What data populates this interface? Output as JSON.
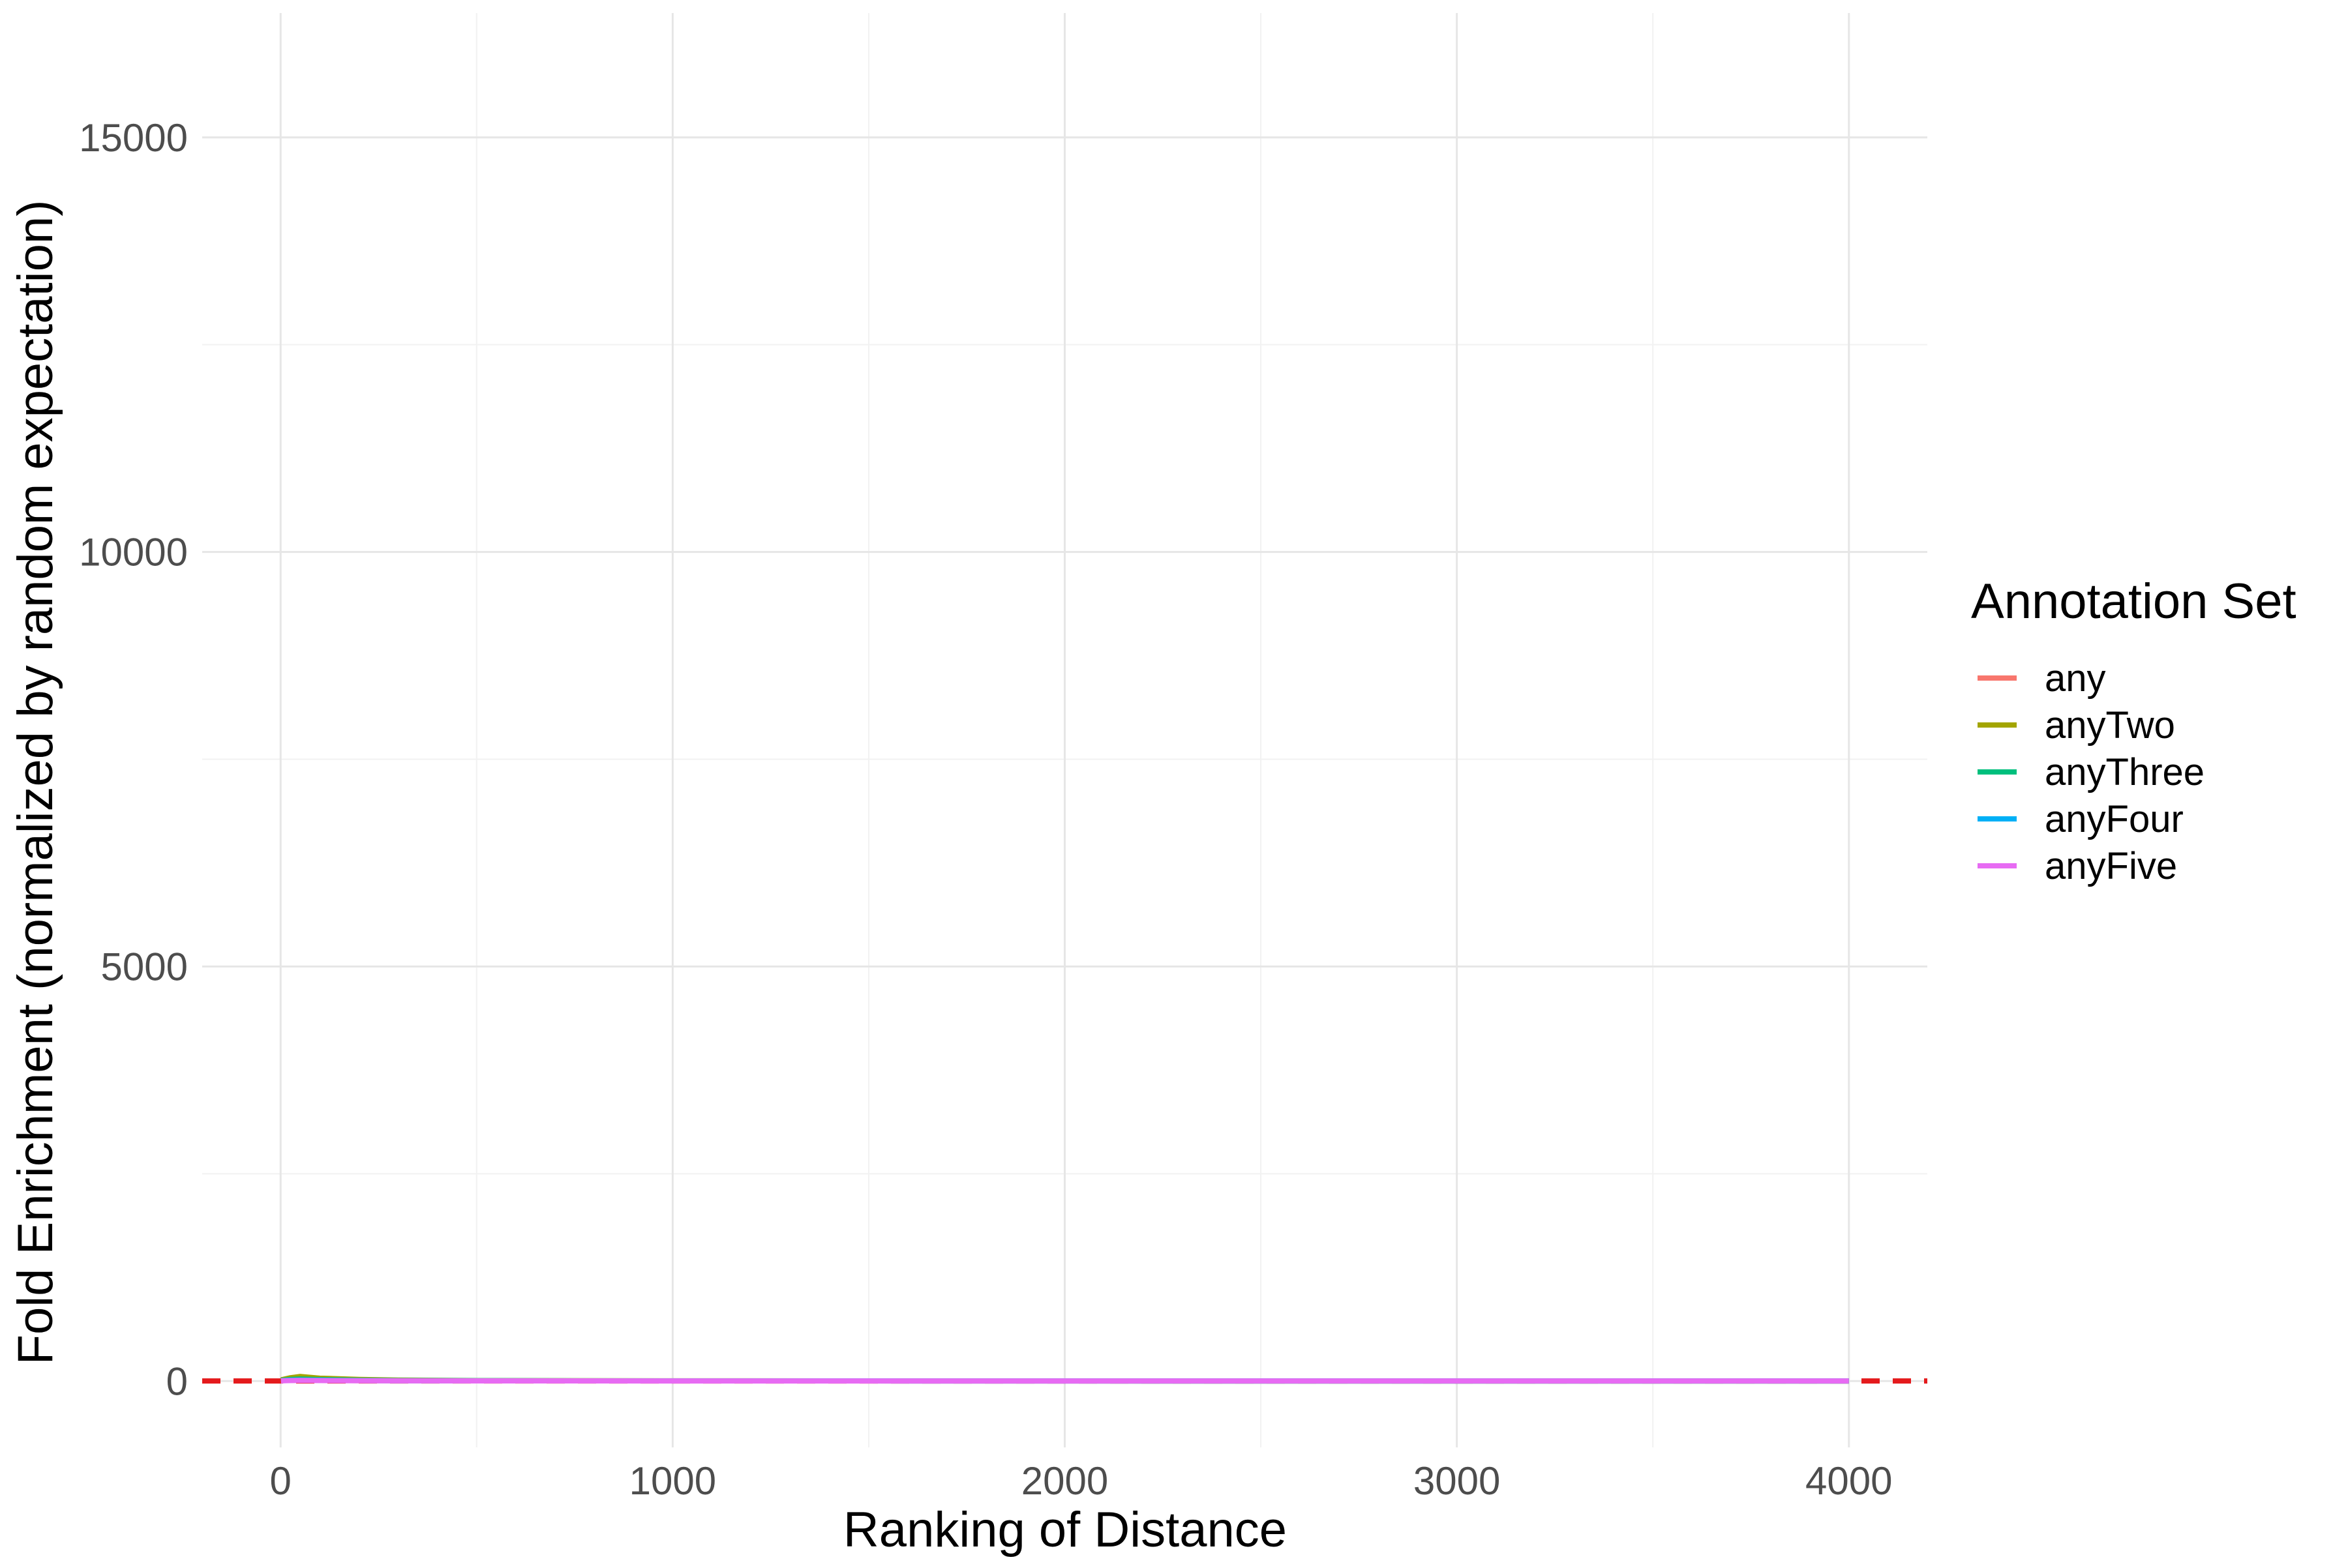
{
  "chart_data": {
    "type": "line",
    "title": "",
    "xlabel": "Ranking of Distance",
    "ylabel": "Fold Enrichment (normalized by random expectation)",
    "xlim": [
      -200,
      4200
    ],
    "ylim": [
      -800,
      16500
    ],
    "x_ticks": [
      0,
      1000,
      2000,
      3000,
      4000
    ],
    "x_tick_labels": [
      "0",
      "1000",
      "2000",
      "3000",
      "4000"
    ],
    "x_minor_ticks": [
      500,
      1500,
      2500,
      3500
    ],
    "y_ticks": [
      0,
      5000,
      10000,
      15000
    ],
    "y_tick_labels": [
      "0",
      "5000",
      "10000",
      "15000"
    ],
    "y_minor_ticks": [
      2500,
      7500,
      12500
    ],
    "grid": true,
    "legend": {
      "title": "Annotation Set",
      "placement": "right"
    },
    "reference_line": {
      "y": 1,
      "color": "#e41a1c",
      "style": "dashed"
    },
    "series": [
      {
        "name": "any",
        "color": "#F8766D",
        "x": [
          1,
          25,
          50,
          100,
          200,
          300,
          500,
          1000,
          1500,
          2000,
          2500,
          3000,
          3500,
          4000
        ],
        "y": [
          5,
          8,
          10,
          8,
          5,
          4,
          3,
          2,
          1.6,
          1.4,
          1.3,
          1.2,
          1.1,
          1
        ]
      },
      {
        "name": "anyTwo",
        "color": "#A3A500",
        "x": [
          1,
          25,
          50,
          100,
          200,
          300,
          500,
          1000,
          1500,
          2000,
          2500,
          3000,
          3500,
          4000
        ],
        "y": [
          15,
          40,
          55,
          35,
          20,
          12,
          6,
          3,
          2,
          1.6,
          1.4,
          1.3,
          1.2,
          1.1
        ]
      },
      {
        "name": "anyThree",
        "color": "#00BF7D",
        "x": [
          1,
          25,
          50,
          100,
          200,
          300,
          500,
          1000,
          1500,
          2000,
          2500,
          3000,
          3500,
          4000
        ],
        "y": [
          8,
          20,
          25,
          18,
          10,
          6,
          4,
          2.5,
          2,
          1.6,
          1.4,
          1.3,
          1.2,
          1.1
        ]
      },
      {
        "name": "anyFour",
        "color": "#00B0F6",
        "x": [
          1,
          25,
          50,
          100,
          200,
          300,
          500,
          1000,
          1500,
          2000,
          2500,
          3000,
          3500,
          4000
        ],
        "y": [
          4,
          10,
          12,
          9,
          6,
          4,
          3,
          2,
          1.6,
          1.4,
          1.3,
          1.2,
          1.1,
          1
        ]
      },
      {
        "name": "anyFive",
        "color": "#E76BF3",
        "x": [
          1,
          25,
          50,
          100,
          200,
          300,
          500,
          1000,
          1500,
          2000,
          2500,
          3000,
          3500,
          4000
        ],
        "y": [
          3,
          6,
          8,
          6,
          4,
          3,
          2,
          1.5,
          1.3,
          1.2,
          1.1,
          1.05,
          1,
          1
        ]
      }
    ]
  }
}
